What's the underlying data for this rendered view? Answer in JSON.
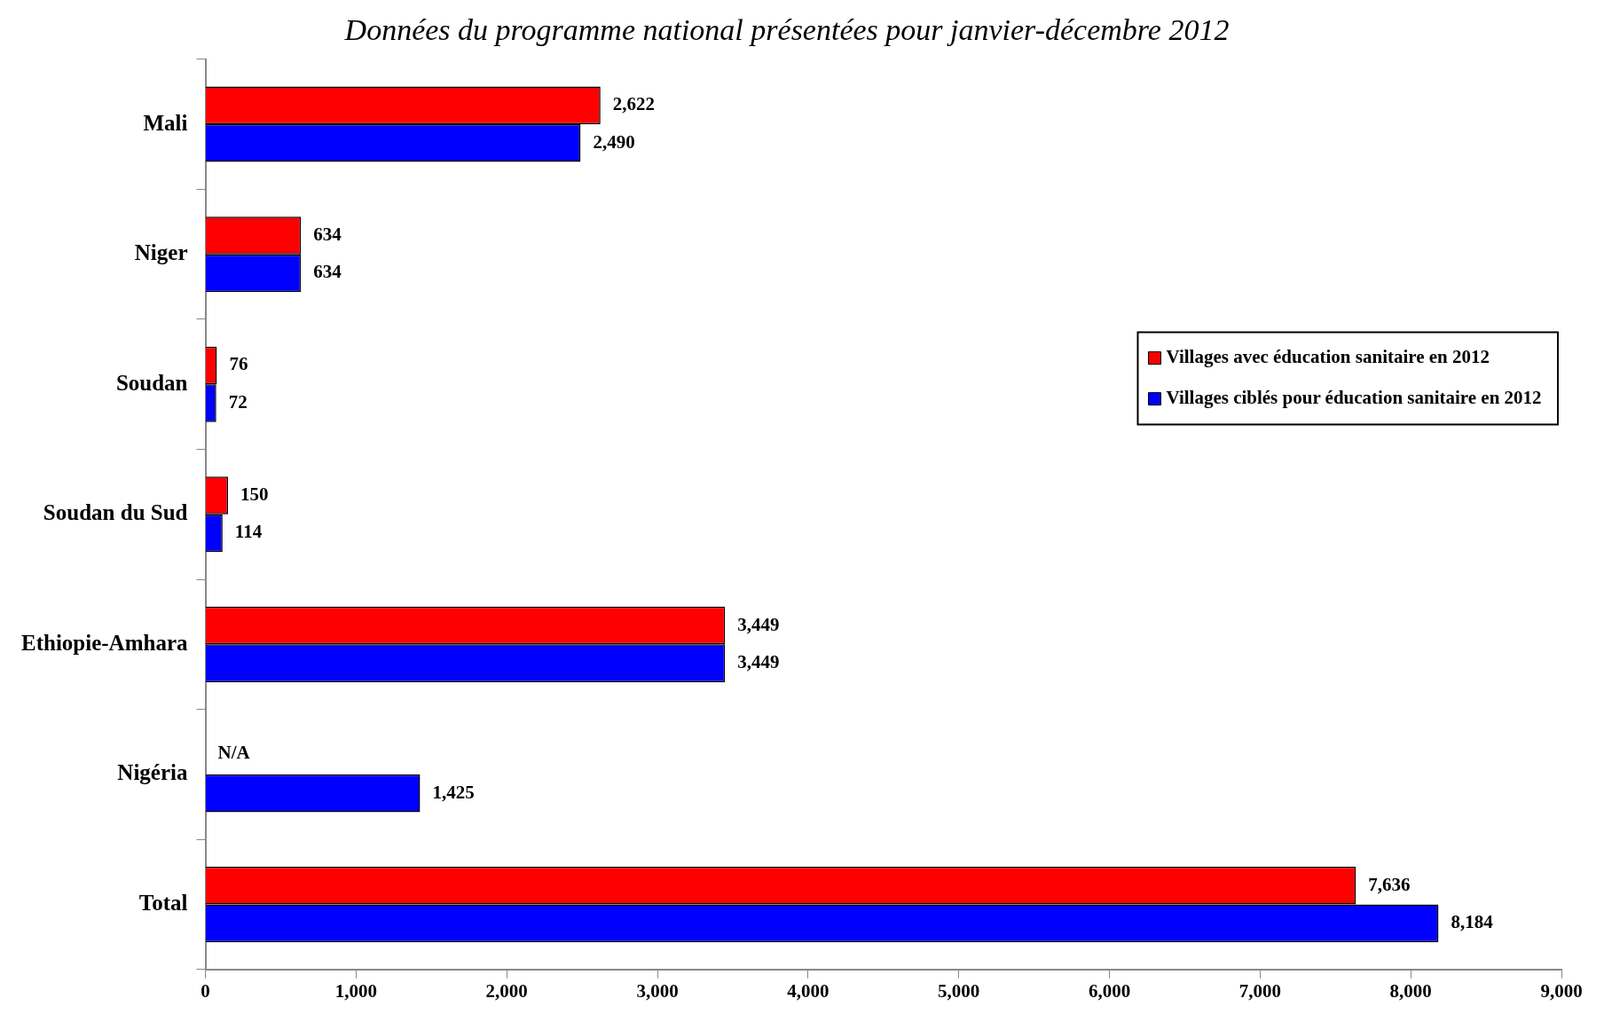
{
  "chart_data": {
    "type": "bar",
    "orientation": "horizontal",
    "title": "Données du programme national présentées pour janvier-décembre 2012",
    "categories": [
      "Mali",
      "Niger",
      "Soudan",
      "Soudan du Sud",
      "Ethiopie-Amhara",
      "Nigéria",
      "Total"
    ],
    "series": [
      {
        "name": "Villages avec éducation sanitaire en 2012",
        "color": "#ff0000",
        "values": [
          2622,
          634,
          76,
          150,
          3449,
          null,
          7636
        ],
        "value_labels": [
          "2,622",
          "634",
          "76",
          "150",
          "3,449",
          "N/A",
          "7,636"
        ]
      },
      {
        "name": "Villages ciblés pour éducation sanitaire en 2012",
        "color": "#0000ff",
        "values": [
          2490,
          634,
          72,
          114,
          3449,
          1425,
          8184
        ],
        "value_labels": [
          "2,490",
          "634",
          "72",
          "114",
          "3,449",
          "1,425",
          "8,184"
        ]
      }
    ],
    "xlim": [
      0,
      9000
    ],
    "xticks": [
      {
        "value": 0,
        "label": "0"
      },
      {
        "value": 1000,
        "label": "1,000"
      },
      {
        "value": 2000,
        "label": "2,000"
      },
      {
        "value": 3000,
        "label": "3,000"
      },
      {
        "value": 4000,
        "label": "4,000"
      },
      {
        "value": 5000,
        "label": "5,000"
      },
      {
        "value": 6000,
        "label": "6,000"
      },
      {
        "value": 7000,
        "label": "7,000"
      },
      {
        "value": 8000,
        "label": "8,000"
      },
      {
        "value": 9000,
        "label": "9,000"
      }
    ],
    "grid": false,
    "legend": "right"
  }
}
